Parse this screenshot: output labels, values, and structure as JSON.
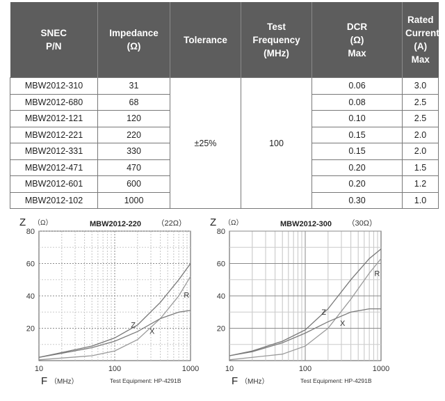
{
  "table": {
    "headers": [
      [
        "SNEC",
        "P/N"
      ],
      [
        "Impedance",
        "(Ω)"
      ],
      [
        "Tolerance"
      ],
      [
        "Test",
        "Frequency",
        "(MHz)"
      ],
      [
        "DCR",
        "(Ω)",
        "Max"
      ],
      [
        "Rated",
        "Current",
        "(A)",
        "Max"
      ]
    ],
    "rows": [
      [
        "MBW2012-310",
        "31",
        "0.06",
        "3.0"
      ],
      [
        "MBW2012-680",
        "68",
        "0.08",
        "2.5"
      ],
      [
        "MBW2012-121",
        "120",
        "0.10",
        "2.5"
      ],
      [
        "MBW2012-221",
        "220",
        "0.15",
        "2.0"
      ],
      [
        "MBW2012-331",
        "330",
        "0.15",
        "2.0"
      ],
      [
        "MBW2012-471",
        "470",
        "0.20",
        "1.5"
      ],
      [
        "MBW2012-601",
        "600",
        "0.20",
        "1.2"
      ],
      [
        "MBW2012-102",
        "1000",
        "0.30",
        "1.0"
      ]
    ],
    "tolerance": "±25%",
    "test_frequency": "100"
  },
  "chart_data": [
    {
      "type": "line",
      "title": "MBW2012-220",
      "impedance_note": "（22Ω）",
      "ylabel": "Z",
      "yunit": "（Ω）",
      "xlabel": "F",
      "xunit": "（MHz）",
      "footer": "Test Equipment: HP-4291B",
      "xscale": "log",
      "xlim": [
        10,
        1000
      ],
      "ylim": [
        0,
        80
      ],
      "xticks": [
        "10",
        "100",
        "1000"
      ],
      "yticks": [
        "20",
        "40",
        "60",
        "80"
      ],
      "grid": true,
      "series": [
        {
          "name": "Z",
          "x": [
            10,
            20,
            50,
            100,
            200,
            400,
            700,
            1000
          ],
          "y": [
            2,
            5,
            9,
            14,
            22,
            36,
            50,
            60
          ]
        },
        {
          "name": "R",
          "x": [
            10,
            50,
            100,
            200,
            400,
            700,
            1000
          ],
          "y": [
            0.5,
            3,
            6,
            13,
            26,
            40,
            52
          ]
        },
        {
          "name": "X",
          "x": [
            10,
            20,
            50,
            100,
            200,
            400,
            700,
            1000
          ],
          "y": [
            2,
            4.5,
            8,
            12,
            18,
            26,
            30,
            31
          ]
        }
      ]
    },
    {
      "type": "line",
      "title": "MBW2012-300",
      "impedance_note": "（30Ω）",
      "ylabel": "Z",
      "yunit": "（Ω）",
      "xlabel": "F",
      "xunit": "（MHz）",
      "footer": "Test Equipment: HP-4291B",
      "xscale": "log",
      "xlim": [
        10,
        1000
      ],
      "ylim": [
        0,
        80
      ],
      "xticks": [
        "10",
        "100",
        "1000"
      ],
      "yticks": [
        "20",
        "40",
        "60",
        "80"
      ],
      "grid": true,
      "series": [
        {
          "name": "Z",
          "x": [
            10,
            20,
            50,
            100,
            200,
            400,
            700,
            1000
          ],
          "y": [
            3,
            6,
            12,
            19,
            32,
            50,
            63,
            69
          ]
        },
        {
          "name": "R",
          "x": [
            10,
            50,
            100,
            200,
            400,
            700,
            1000
          ],
          "y": [
            0.5,
            4,
            9,
            20,
            38,
            54,
            63
          ]
        },
        {
          "name": "X",
          "x": [
            10,
            20,
            50,
            100,
            200,
            400,
            700,
            1000
          ],
          "y": [
            3,
            5.5,
            11,
            17,
            24,
            30,
            32,
            32
          ]
        }
      ]
    }
  ]
}
